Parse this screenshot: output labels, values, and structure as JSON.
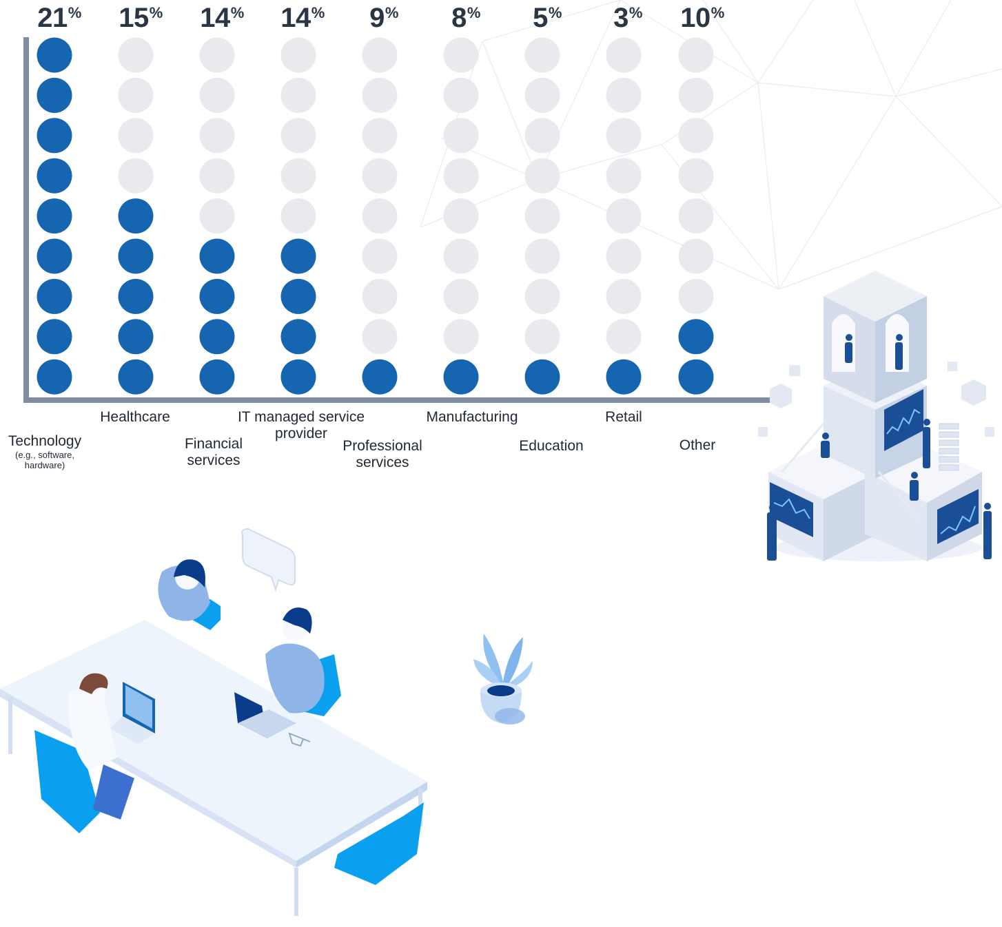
{
  "chart_data": {
    "type": "dot-column",
    "dots_per_column": 9,
    "series": [
      {
        "label": "Technology",
        "sublabel": "(e.g., software, hardware)",
        "value": 21,
        "percent_text": "21",
        "filled_dots": 9
      },
      {
        "label": "Healthcare",
        "value": 15,
        "percent_text": "15",
        "filled_dots": 5
      },
      {
        "label": "Financial services",
        "value": 14,
        "percent_text": "14",
        "filled_dots": 4
      },
      {
        "label": "IT managed service provider",
        "value": 14,
        "percent_text": "14",
        "filled_dots": 4
      },
      {
        "label": "Professional services",
        "value": 9,
        "percent_text": "9",
        "filled_dots": 1
      },
      {
        "label": "Manufacturing",
        "value": 8,
        "percent_text": "8",
        "filled_dots": 1
      },
      {
        "label": "Education",
        "value": 5,
        "percent_text": "5",
        "filled_dots": 1
      },
      {
        "label": "Retail",
        "value": 3,
        "percent_text": "3",
        "filled_dots": 1
      },
      {
        "label": "Other",
        "value": 10,
        "percent_text": "10",
        "filled_dots": 2
      }
    ],
    "percent_symbol": "%",
    "colors": {
      "filled": "#1565b0",
      "empty": "#e8eaed",
      "axis": "#7d8ea3",
      "value_text": "#2b3644"
    }
  },
  "illustrations": [
    "isometric-data-tower",
    "meeting-table-scene",
    "potted-plant"
  ]
}
